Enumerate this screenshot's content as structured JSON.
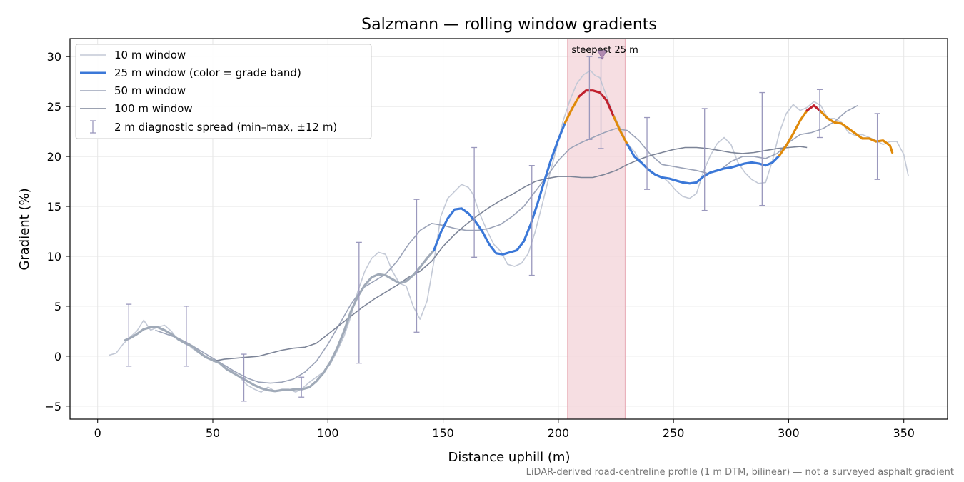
{
  "chart_data": {
    "type": "line",
    "title": "Salzmann — rolling window gradients",
    "xlabel": "Distance uphill (m)",
    "ylabel": "Gradient (%)",
    "footnote": "LiDAR-derived road-centreline profile (1 m DTM, bilinear) — not a surveyed asphalt gradient",
    "xlim": [
      -12,
      369
    ],
    "ylim": [
      -6.3,
      31.8
    ],
    "xticks": [
      0,
      50,
      100,
      150,
      200,
      250,
      300,
      350
    ],
    "yticks": [
      -5,
      0,
      5,
      10,
      15,
      20,
      25,
      30
    ],
    "grid": true,
    "legend_position": "top-left",
    "colors": {
      "w10": "#c3c9d6",
      "w25_default": "#a0aab8",
      "w50": "#9ba3b8",
      "w100": "#7c8497",
      "band_blue": "#3b78d8",
      "band_orange": "#e08a0a",
      "band_red": "#c0202d",
      "highlight": "#f3d3d8",
      "errorbar": "#9a98bd",
      "annotation": "#cc2233"
    },
    "highlight_region": {
      "x": [
        204,
        229
      ],
      "label": "steepest 25 m",
      "marker_x": 219,
      "marker_y": 30.1
    },
    "series": [
      {
        "name": "10 m window",
        "x": [
          5,
          8,
          11,
          14,
          17,
          20,
          23,
          26,
          29,
          32,
          35,
          38,
          41,
          44,
          47,
          50,
          53,
          56,
          59,
          62,
          65,
          68,
          71,
          74,
          77,
          80,
          83,
          86,
          89,
          92,
          95,
          98,
          101,
          104,
          107,
          110,
          113,
          116,
          119,
          122,
          125,
          128,
          131,
          134,
          137,
          140,
          143,
          146,
          149,
          152,
          155,
          158,
          161,
          163,
          166,
          169,
          172,
          175,
          178,
          181,
          184,
          187,
          190,
          193,
          196,
          199,
          202,
          205,
          208,
          211,
          214,
          216,
          218,
          221,
          224,
          227,
          230,
          233,
          236,
          239,
          242,
          245,
          248,
          251,
          254,
          257,
          260,
          263,
          266,
          269,
          272,
          275,
          278,
          281,
          284,
          287,
          290,
          293,
          296,
          299,
          302,
          305,
          308,
          311,
          314,
          317,
          320,
          323,
          326,
          329,
          332,
          335,
          338,
          341,
          344,
          347,
          350,
          352
        ],
        "y": [
          0.1,
          0.3,
          1.2,
          1.9,
          2.5,
          3.6,
          2.6,
          2.9,
          3.1,
          2.5,
          1.6,
          1.4,
          0.8,
          0.3,
          0,
          -0.4,
          -0.7,
          -1,
          -1.6,
          -2.2,
          -2.9,
          -3.3,
          -3.6,
          -3.1,
          -3.5,
          -3.3,
          -3.3,
          -3.6,
          -3.2,
          -2.6,
          -2.1,
          -1.6,
          -0.8,
          0.5,
          2,
          4,
          6.5,
          8.5,
          9.8,
          10.4,
          10.2,
          8.5,
          7.3,
          7,
          5,
          3.7,
          5.5,
          9.5,
          14,
          15.8,
          16.5,
          17.2,
          16.9,
          16.2,
          14.2,
          12.6,
          11.2,
          10.5,
          9.2,
          9,
          9.3,
          10.3,
          12.5,
          15.2,
          18,
          20.6,
          23.5,
          25.6,
          27.3,
          28.2,
          28.6,
          28.1,
          27.9,
          26,
          24.2,
          22.8,
          21.3,
          20.5,
          19.4,
          18.8,
          18.2,
          18,
          17.4,
          16.6,
          16,
          15.8,
          16.3,
          18.5,
          20.1,
          21.3,
          21.9,
          21.2,
          19.4,
          18.4,
          17.7,
          17.3,
          17.4,
          19.6,
          22.4,
          24.3,
          25.2,
          24.6,
          24.9,
          25.5,
          25.1,
          23.8,
          23.8,
          23.4,
          22.4,
          22.1,
          22.2,
          21.9,
          21.6,
          21.2,
          21.5,
          21.5,
          20.2,
          18
        ]
      },
      {
        "name": "25 m window (color = grade band)",
        "x": [
          12,
          14,
          17,
          20,
          23,
          26,
          29,
          32,
          35,
          38,
          41,
          44,
          47,
          50,
          53,
          56,
          59,
          62,
          65,
          68,
          71,
          74,
          77,
          80,
          83,
          86,
          89,
          92,
          95,
          98,
          101,
          104,
          107,
          110,
          113,
          116,
          119,
          122,
          125,
          128,
          131,
          134,
          137,
          140,
          143,
          146,
          149,
          152,
          155,
          158,
          161,
          164,
          167,
          170,
          173,
          176,
          179,
          182,
          185,
          188,
          191,
          194,
          197,
          200,
          203,
          206,
          209,
          212,
          215,
          218,
          221,
          224,
          227,
          230,
          233,
          236,
          239,
          242,
          245,
          248,
          251,
          254,
          257,
          260,
          263,
          266,
          269,
          272,
          275,
          278,
          281,
          284,
          287,
          290,
          293,
          296,
          299,
          302,
          305,
          308,
          311,
          314,
          317,
          320,
          323,
          326,
          329,
          332,
          335,
          338,
          341,
          344,
          345
        ],
        "y": [
          1.6,
          1.8,
          2.2,
          2.7,
          2.9,
          2.9,
          2.6,
          2.2,
          1.7,
          1.3,
          1,
          0.4,
          -0.1,
          -0.4,
          -0.7,
          -1.3,
          -1.7,
          -2.1,
          -2.5,
          -2.9,
          -3.2,
          -3.4,
          -3.5,
          -3.4,
          -3.4,
          -3.3,
          -3.3,
          -3.1,
          -2.5,
          -1.7,
          -0.6,
          0.8,
          2.5,
          4.5,
          6,
          7.1,
          7.9,
          8.2,
          8.1,
          7.7,
          7.3,
          7.5,
          8.1,
          8.9,
          9.8,
          10.6,
          12.4,
          13.8,
          14.7,
          14.8,
          14.3,
          13.5,
          12.5,
          11.2,
          10.3,
          10.2,
          10.4,
          10.6,
          11.5,
          13.2,
          15.3,
          17.6,
          19.8,
          21.7,
          23.4,
          24.8,
          26,
          26.6,
          26.6,
          26.4,
          25.6,
          24,
          22.5,
          21.2,
          20,
          19.4,
          18.7,
          18.2,
          17.9,
          17.8,
          17.6,
          17.4,
          17.3,
          17.4,
          18,
          18.4,
          18.6,
          18.8,
          18.9,
          19.1,
          19.3,
          19.4,
          19.3,
          19.1,
          19.4,
          20.1,
          21.1,
          22.3,
          23.6,
          24.6,
          25.1,
          24.5,
          23.8,
          23.4,
          23.3,
          22.8,
          22.3,
          21.8,
          21.8,
          21.5,
          21.6,
          21.1,
          20.4
        ]
      },
      {
        "name": "50 m window",
        "x": [
          25,
          30,
          35,
          40,
          45,
          50,
          55,
          60,
          65,
          70,
          75,
          80,
          85,
          90,
          95,
          100,
          105,
          110,
          115,
          120,
          125,
          130,
          135,
          140,
          145,
          150,
          155,
          160,
          165,
          170,
          175,
          180,
          185,
          190,
          195,
          200,
          205,
          210,
          215,
          220,
          225,
          230,
          235,
          240,
          245,
          250,
          255,
          260,
          265,
          270,
          275,
          280,
          285,
          290,
          295,
          300,
          305,
          310,
          315,
          320,
          325,
          330
        ],
        "y": [
          2.6,
          2.2,
          1.8,
          1.2,
          0.5,
          -0.2,
          -0.9,
          -1.6,
          -2.2,
          -2.6,
          -2.7,
          -2.6,
          -2.3,
          -1.6,
          -0.5,
          1.2,
          3.2,
          5.2,
          6.8,
          7.5,
          8.2,
          9.5,
          11.2,
          12.6,
          13.3,
          13.1,
          12.8,
          12.6,
          12.6,
          12.8,
          13.2,
          14,
          15,
          16.5,
          18,
          19.6,
          20.8,
          21.4,
          21.9,
          22.4,
          22.8,
          22.6,
          21.6,
          20.2,
          19.2,
          19,
          18.8,
          18.6,
          18.3,
          18.6,
          19.5,
          20,
          20,
          19.8,
          20.3,
          21.4,
          22.2,
          22.4,
          22.8,
          23.5,
          24.5,
          25.1
        ]
      },
      {
        "name": "100 m window",
        "x": [
          50,
          55,
          60,
          65,
          70,
          75,
          80,
          85,
          90,
          95,
          100,
          105,
          110,
          115,
          120,
          125,
          130,
          135,
          140,
          145,
          150,
          155,
          160,
          165,
          170,
          175,
          180,
          185,
          190,
          195,
          200,
          205,
          210,
          215,
          220,
          225,
          230,
          235,
          240,
          245,
          250,
          255,
          260,
          265,
          270,
          275,
          280,
          285,
          290,
          295,
          300,
          305,
          308
        ],
        "y": [
          -0.5,
          -0.3,
          -0.2,
          -0.1,
          0,
          0.3,
          0.6,
          0.8,
          0.9,
          1.3,
          2.2,
          3.1,
          4,
          4.9,
          5.7,
          6.4,
          7.1,
          7.9,
          8.5,
          9.5,
          11,
          12.2,
          13.2,
          14.1,
          14.9,
          15.6,
          16.2,
          16.9,
          17.5,
          17.8,
          18,
          18,
          17.9,
          17.9,
          18.2,
          18.6,
          19.2,
          19.7,
          20.1,
          20.4,
          20.7,
          20.9,
          20.9,
          20.8,
          20.6,
          20.4,
          20.3,
          20.4,
          20.6,
          20.8,
          20.9,
          21,
          20.9
        ]
      }
    ],
    "band_segments": [
      {
        "band": "blue",
        "x": [
          146,
          149,
          152,
          155,
          158,
          161,
          164,
          167,
          170,
          173,
          176,
          179,
          182,
          185,
          188,
          191,
          194,
          197,
          200,
          203
        ]
      },
      {
        "band": "orange",
        "x": [
          203,
          206,
          209
        ]
      },
      {
        "band": "red",
        "x": [
          209,
          212,
          215,
          218,
          221,
          224
        ]
      },
      {
        "band": "orange",
        "x": [
          224,
          227,
          230
        ]
      },
      {
        "band": "blue",
        "x": [
          230,
          233,
          236,
          239,
          242,
          245,
          248,
          251,
          254,
          257,
          260,
          263,
          266,
          269,
          272,
          275,
          278,
          281,
          284,
          287,
          290,
          293,
          296
        ]
      },
      {
        "band": "orange",
        "x": [
          296,
          299,
          302,
          305,
          308
        ]
      },
      {
        "band": "red",
        "x": [
          308,
          311,
          314
        ]
      },
      {
        "band": "orange",
        "x": [
          314,
          317,
          320,
          323,
          326,
          329,
          332,
          335,
          338,
          341,
          344,
          345
        ]
      }
    ],
    "error_bars": {
      "name": "2 m diagnostic spread (min–max, ±12 m)",
      "x": [
        13.5,
        38.5,
        63.5,
        88.5,
        113.5,
        138.5,
        163.5,
        188.5,
        213.5,
        218.5,
        238.5,
        263.5,
        288.5,
        313.5,
        338.5
      ],
      "low": [
        -1,
        -1,
        -4.5,
        -4.1,
        -0.7,
        2.4,
        9.9,
        8.1,
        21.7,
        20.8,
        16.7,
        14.6,
        15.1,
        21.9,
        17.7
      ],
      "high": [
        5.2,
        5,
        0.2,
        -2.1,
        11.4,
        15.7,
        20.9,
        19.1,
        30,
        29.9,
        23.9,
        24.8,
        26.4,
        26.7,
        24.3
      ]
    }
  }
}
